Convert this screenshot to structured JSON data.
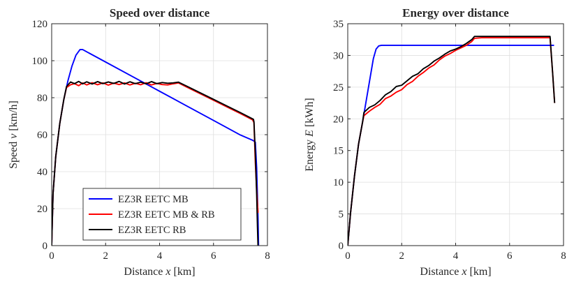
{
  "chart_data": [
    {
      "type": "line",
      "title": "Speed over distance",
      "xlabel": {
        "prefix": "Distance",
        "var": "x",
        "unit": "[km]"
      },
      "ylabel": {
        "prefix": "Speed",
        "var": "v",
        "unit": "[km/h]"
      },
      "xlim": [
        0,
        8
      ],
      "ylim": [
        0,
        120
      ],
      "xticks": [
        0,
        2,
        4,
        6,
        8
      ],
      "yticks": [
        0,
        20,
        40,
        60,
        80,
        100,
        120
      ],
      "grid": true,
      "legend_position": "bottom-center",
      "series": [
        {
          "name": "EZ3R EETC MB",
          "color": "#0000ff",
          "x": [
            0,
            0.05,
            0.15,
            0.3,
            0.45,
            0.6,
            0.75,
            0.9,
            1.05,
            1.15,
            2,
            3,
            4,
            5,
            6,
            7,
            7.45,
            7.55,
            7.6,
            7.65,
            7.67
          ],
          "y": [
            0,
            28,
            48,
            66,
            79,
            89,
            97,
            103,
            106,
            106,
            99.3,
            91.4,
            83.5,
            75.6,
            67.7,
            59.8,
            57,
            56,
            42,
            15,
            0
          ]
        },
        {
          "name": "EZ3R EETC MB & RB",
          "color": "#ff0000",
          "x": [
            0,
            0.05,
            0.15,
            0.3,
            0.45,
            0.55,
            0.7,
            0.85,
            1,
            1.15,
            1.3,
            1.5,
            1.7,
            1.9,
            2.1,
            2.3,
            2.5,
            2.7,
            2.9,
            3.1,
            3.3,
            3.5,
            3.7,
            3.9,
            4.1,
            4.3,
            4.5,
            4.7,
            5,
            5.5,
            6,
            6.5,
            7,
            7.45,
            7.5,
            7.55,
            7.6,
            7.65,
            7.67
          ],
          "y": [
            0,
            28,
            48,
            66,
            79,
            85.5,
            87,
            87.6,
            86.5,
            88,
            86.9,
            88.1,
            87,
            88,
            86.8,
            87.9,
            87.1,
            88,
            86.9,
            87.8,
            87,
            88.1,
            86.9,
            87.7,
            87.1,
            86.9,
            87.5,
            88,
            85.8,
            82.2,
            78.6,
            75,
            71.4,
            68,
            66.5,
            45,
            30,
            18,
            18
          ]
        },
        {
          "name": "EZ3R EETC RB",
          "color": "#000000",
          "x": [
            0,
            0.05,
            0.15,
            0.3,
            0.45,
            0.55,
            0.7,
            0.85,
            1,
            1.15,
            1.3,
            1.5,
            1.7,
            1.9,
            2.1,
            2.3,
            2.5,
            2.7,
            2.9,
            3.1,
            3.3,
            3.5,
            3.7,
            3.9,
            4.1,
            4.3,
            4.5,
            4.7,
            5,
            5.5,
            6,
            6.5,
            7,
            7.48,
            7.5,
            7.55,
            7.6,
            7.63,
            7.65
          ],
          "y": [
            0,
            28,
            48,
            66,
            79,
            86,
            88.5,
            87.6,
            88.8,
            87.5,
            88.6,
            87.4,
            88.7,
            87.6,
            88.5,
            87.7,
            88.8,
            87.4,
            88.6,
            87.6,
            88.4,
            87.5,
            88.7,
            87.6,
            88.2,
            87.8,
            88,
            88.4,
            86.3,
            82.7,
            79.1,
            75.5,
            71.9,
            68.3,
            67,
            50,
            28,
            10,
            0
          ]
        }
      ]
    },
    {
      "type": "line",
      "title": "Energy over distance",
      "xlabel": {
        "prefix": "Distance",
        "var": "x",
        "unit": "[km]"
      },
      "ylabel": {
        "prefix": "Energy",
        "var": "E",
        "unit": "[kWh]"
      },
      "xlim": [
        0,
        8
      ],
      "ylim": [
        0,
        35
      ],
      "xticks": [
        0,
        2,
        4,
        6,
        8
      ],
      "yticks": [
        0,
        5,
        10,
        15,
        20,
        25,
        30,
        35
      ],
      "grid": true,
      "series": [
        {
          "name": "EZ3R EETC MB",
          "color": "#0000ff",
          "x": [
            0,
            0.1,
            0.25,
            0.4,
            0.55,
            0.65,
            0.75,
            0.85,
            0.95,
            1.05,
            1.15,
            1.25,
            2,
            4,
            6,
            7.5,
            7.65
          ],
          "y": [
            0,
            5,
            11,
            16,
            19.5,
            22,
            24.5,
            27,
            29.5,
            31,
            31.5,
            31.6,
            31.6,
            31.6,
            31.6,
            31.6,
            31.6
          ]
        },
        {
          "name": "EZ3R EETC MB & RB",
          "color": "#ff0000",
          "x": [
            0,
            0.1,
            0.25,
            0.4,
            0.55,
            0.6,
            0.8,
            1,
            1.2,
            1.4,
            1.6,
            1.8,
            2,
            2.2,
            2.4,
            2.6,
            2.8,
            3,
            3.2,
            3.4,
            3.6,
            3.8,
            4,
            4.2,
            4.4,
            4.6,
            4.7,
            5,
            6,
            7,
            7.45,
            7.5,
            7.6,
            7.67
          ],
          "y": [
            0,
            5,
            11,
            16,
            19.5,
            20.5,
            21.2,
            21.8,
            22.3,
            23.2,
            23.6,
            24.2,
            24.6,
            25.4,
            25.9,
            26.7,
            27.3,
            28,
            28.5,
            29.3,
            29.9,
            30.3,
            30.8,
            31.2,
            31.6,
            32.2,
            32.7,
            32.8,
            32.8,
            32.8,
            32.8,
            32.8,
            27,
            22.5
          ]
        },
        {
          "name": "EZ3R EETC RB",
          "color": "#000000",
          "x": [
            0,
            0.1,
            0.25,
            0.4,
            0.55,
            0.6,
            0.8,
            1,
            1.2,
            1.4,
            1.6,
            1.8,
            2,
            2.2,
            2.4,
            2.6,
            2.8,
            3,
            3.2,
            3.4,
            3.6,
            3.8,
            4,
            4.2,
            4.4,
            4.6,
            4.7,
            5,
            6,
            7,
            7.45,
            7.5,
            7.6,
            7.67
          ],
          "y": [
            0,
            5,
            11,
            16,
            19.5,
            21,
            21.8,
            22.2,
            22.9,
            23.8,
            24.3,
            25.1,
            25.3,
            26,
            26.7,
            27.1,
            27.9,
            28.4,
            29.1,
            29.6,
            30.2,
            30.7,
            31,
            31.4,
            31.9,
            32.5,
            33,
            33,
            33,
            33,
            33,
            33,
            27,
            22.5
          ]
        }
      ]
    }
  ]
}
